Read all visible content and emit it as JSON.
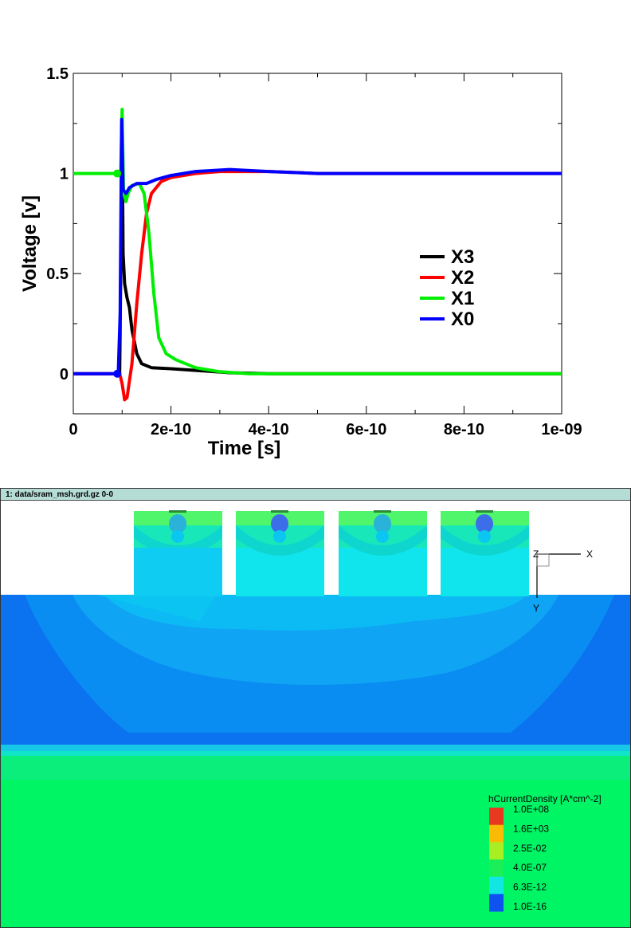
{
  "chart_data": {
    "type": "line",
    "title": "",
    "xlabel": "Time [s]",
    "ylabel": "Voltage [v]",
    "xlim": [
      0,
      1e-09
    ],
    "ylim": [
      -0.2,
      1.5
    ],
    "x_ticks": [
      0,
      2e-10,
      4e-10,
      6e-10,
      8e-10,
      1e-09
    ],
    "x_tick_labels": [
      "0",
      "2e-10",
      "4e-10",
      "6e-10",
      "8e-10",
      "1e-09"
    ],
    "y_ticks": [
      0,
      0.5,
      1,
      1.5
    ],
    "y_tick_labels": [
      "0",
      "0.5",
      "1",
      "1.5"
    ],
    "legend_position": "center-right",
    "series": [
      {
        "name": "X3",
        "color": "#000000",
        "points": [
          [
            0,
            0
          ],
          [
            9.5e-11,
            0
          ],
          [
            1e-10,
            1.2
          ],
          [
            1.02e-10,
            0.6
          ],
          [
            1.05e-10,
            0.45
          ],
          [
            1.1e-10,
            0.38
          ],
          [
            1.15e-10,
            0.33
          ],
          [
            1.2e-10,
            0.22
          ],
          [
            1.3e-10,
            0.1
          ],
          [
            1.4e-10,
            0.05
          ],
          [
            1.6e-10,
            0.03
          ],
          [
            2e-10,
            0.025
          ],
          [
            2.6e-10,
            0.015
          ],
          [
            3.2e-10,
            0.005
          ],
          [
            4e-10,
            0
          ],
          [
            1e-09,
            0
          ]
        ]
      },
      {
        "name": "X2",
        "color": "#ff0000",
        "points": [
          [
            0,
            0
          ],
          [
            9.5e-11,
            0
          ],
          [
            1e-10,
            -0.05
          ],
          [
            1.05e-10,
            -0.13
          ],
          [
            1.1e-10,
            -0.12
          ],
          [
            1.2e-10,
            0.05
          ],
          [
            1.3e-10,
            0.35
          ],
          [
            1.4e-10,
            0.6
          ],
          [
            1.5e-10,
            0.8
          ],
          [
            1.6e-10,
            0.9
          ],
          [
            1.8e-10,
            0.96
          ],
          [
            2e-10,
            0.98
          ],
          [
            2.5e-10,
            1.0
          ],
          [
            3e-10,
            1.01
          ],
          [
            4e-10,
            1.01
          ],
          [
            5e-10,
            1.0
          ],
          [
            1e-09,
            1.0
          ]
        ]
      },
      {
        "name": "X1",
        "color": "#00ee00",
        "points": [
          [
            0,
            1
          ],
          [
            9.7e-11,
            1
          ],
          [
            1e-10,
            1.32
          ],
          [
            1.03e-10,
            0.9
          ],
          [
            1.08e-10,
            0.86
          ],
          [
            1.12e-10,
            0.9
          ],
          [
            1.2e-10,
            0.94
          ],
          [
            1.35e-10,
            0.95
          ],
          [
            1.45e-10,
            0.9
          ],
          [
            1.55e-10,
            0.7
          ],
          [
            1.65e-10,
            0.4
          ],
          [
            1.75e-10,
            0.18
          ],
          [
            1.9e-10,
            0.1
          ],
          [
            2.1e-10,
            0.07
          ],
          [
            2.5e-10,
            0.03
          ],
          [
            3e-10,
            0.01
          ],
          [
            3.6e-10,
            0
          ],
          [
            1e-09,
            0
          ]
        ]
      },
      {
        "name": "X0",
        "color": "#0000ff",
        "points": [
          [
            0,
            0
          ],
          [
            9.2e-11,
            0
          ],
          [
            9.6e-11,
            0.3
          ],
          [
            9.9e-11,
            1.27
          ],
          [
            1.02e-10,
            0.92
          ],
          [
            1.08e-10,
            0.9
          ],
          [
            1.15e-10,
            0.93
          ],
          [
            1.3e-10,
            0.95
          ],
          [
            1.5e-10,
            0.95
          ],
          [
            1.7e-10,
            0.97
          ],
          [
            2e-10,
            0.99
          ],
          [
            2.5e-10,
            1.01
          ],
          [
            3.2e-10,
            1.02
          ],
          [
            4e-10,
            1.01
          ],
          [
            5e-10,
            1.0
          ],
          [
            1e-09,
            1.0
          ]
        ]
      }
    ]
  },
  "viewer": {
    "title": "1: data/sram_msh.grd.gz 0-0",
    "axes": {
      "z": "Z",
      "x": "X",
      "y": "Y"
    },
    "colorbar": {
      "title": "hCurrentDensity [A*cm^-2]",
      "labels": [
        "1.0E+08",
        "1.6E+03",
        "2.5E-02",
        "4.0E-07",
        "6.3E-12",
        "1.0E-16"
      ],
      "colors": [
        "#e83820",
        "#fabb05",
        "#a9ee22",
        "#1aee58",
        "#12e6e2",
        "#0e52f0"
      ]
    },
    "field_colors": {
      "background": "#ffffff",
      "substrate_green": "#00f565",
      "bulk_blue": "#0fa4f4",
      "deep_blue": "#0b72f0",
      "light_cyan": "#11e5ee",
      "cyan": "#0ad9f5",
      "transistor_green": "#4ff56a",
      "depletion_blue": "#3d6ee9"
    }
  }
}
